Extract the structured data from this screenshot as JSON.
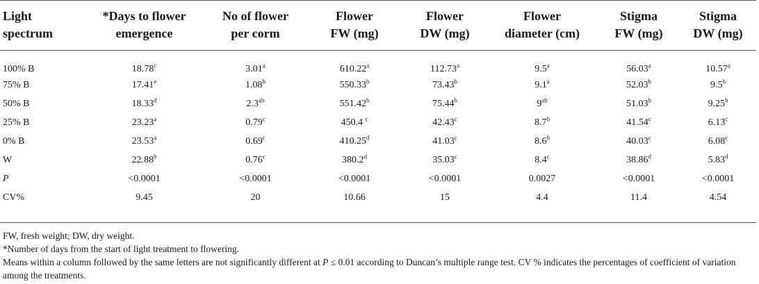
{
  "table": {
    "headers": [
      [
        "Light",
        "spectrum"
      ],
      [
        "*Days to flower",
        "emergence"
      ],
      [
        "No of flower",
        "per corm"
      ],
      [
        "Flower",
        "FW (mg)"
      ],
      [
        "Flower",
        "DW (mg)"
      ],
      [
        "Flower",
        "diameter (cm)"
      ],
      [
        "Stigma",
        "FW (mg)"
      ],
      [
        "Stigma",
        "DW (mg)"
      ]
    ],
    "rows": [
      {
        "label": "100% B",
        "cells": [
          {
            "v": "18.78",
            "s": "c"
          },
          {
            "v": "3.01",
            "s": "a"
          },
          {
            "v": "610.22",
            "s": "a"
          },
          {
            "v": "112.73",
            "s": "a"
          },
          {
            "v": "9.5",
            "s": "a"
          },
          {
            "v": "56.03",
            "s": "a"
          },
          {
            "v": "10.57",
            "s": "a"
          }
        ]
      },
      {
        "label": "75% B",
        "cells": [
          {
            "v": "17.41",
            "s": "e"
          },
          {
            "v": "1.08",
            "s": "b"
          },
          {
            "v": "550.33",
            "s": "b"
          },
          {
            "v": "73.43",
            "s": "b"
          },
          {
            "v": "9.1",
            "s": "a"
          },
          {
            "v": "52.03",
            "s": "b"
          },
          {
            "v": "9.5",
            "s": "b"
          }
        ]
      },
      {
        "label": "50% B",
        "cells": [
          {
            "v": "18.33",
            "s": "d"
          },
          {
            "v": "2.3",
            "s": "ab"
          },
          {
            "v": "551.42",
            "s": "b"
          },
          {
            "v": "75.44",
            "s": "b"
          },
          {
            "v": "9",
            "s": "ab"
          },
          {
            "v": "51.03",
            "s": "b"
          },
          {
            "v": "9.25",
            "s": "b"
          }
        ]
      },
      {
        "label": "25% B",
        "cells": [
          {
            "v": "23.23",
            "s": "a"
          },
          {
            "v": "0.79",
            "s": "c"
          },
          {
            "v": "450.4 ",
            "s": "c"
          },
          {
            "v": "42.43",
            "s": "c"
          },
          {
            "v": "8.7",
            "s": "b"
          },
          {
            "v": "41.54",
            "s": "c"
          },
          {
            "v": "6.13",
            "s": "c"
          }
        ]
      },
      {
        "label": "0% B",
        "cells": [
          {
            "v": "23.53",
            "s": "a"
          },
          {
            "v": "0.69",
            "s": "c"
          },
          {
            "v": "410.25",
            "s": "d"
          },
          {
            "v": "41.03",
            "s": "c"
          },
          {
            "v": "8.6",
            "s": "b"
          },
          {
            "v": "40.03",
            "s": "c"
          },
          {
            "v": "6.08",
            "s": "c"
          }
        ]
      },
      {
        "label": "W",
        "cells": [
          {
            "v": "22.88",
            "s": "b"
          },
          {
            "v": "0.76",
            "s": "c"
          },
          {
            "v": "380.2",
            "s": "d"
          },
          {
            "v": "35.03",
            "s": "c"
          },
          {
            "v": "8.4",
            "s": "c"
          },
          {
            "v": "38.86",
            "s": "d"
          },
          {
            "v": "5.83",
            "s": "d"
          }
        ]
      },
      {
        "label": "P",
        "italic": true,
        "cells": [
          {
            "v": "<0.0001",
            "s": ""
          },
          {
            "v": "<0.0001",
            "s": ""
          },
          {
            "v": "<0.0001",
            "s": ""
          },
          {
            "v": "<0.0001",
            "s": ""
          },
          {
            "v": "0.0027",
            "s": ""
          },
          {
            "v": "<0.0001",
            "s": ""
          },
          {
            "v": "<0.0001",
            "s": ""
          }
        ]
      },
      {
        "label": "CV%",
        "cells": [
          {
            "v": "9.45",
            "s": ""
          },
          {
            "v": "20",
            "s": ""
          },
          {
            "v": "10.66",
            "s": ""
          },
          {
            "v": "15",
            "s": ""
          },
          {
            "v": "4.4",
            "s": ""
          },
          {
            "v": "11.4",
            "s": ""
          },
          {
            "v": "4.54",
            "s": ""
          }
        ]
      }
    ]
  },
  "notes": {
    "abbrev": "FW, fresh weight; DW, dry weight.",
    "asterisk": "*Number of days from the start of light treatment to flowering.",
    "means_1": "Means within a column followed by the same letters are not significantly different at ",
    "means_p": "P",
    "means_2": " ≤ 0.01 according to Duncan’s multiple range test. CV % indicates the percentages of coefficient of variation among the treatments."
  }
}
